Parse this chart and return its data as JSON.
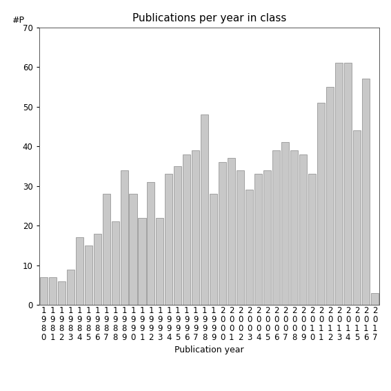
{
  "title": "Publications per year in class",
  "xlabel": "Publication year",
  "ylabel": "#P",
  "years": [
    1980,
    1981,
    1982,
    1983,
    1984,
    1985,
    1986,
    1987,
    1988,
    1989,
    1990,
    1991,
    1992,
    1993,
    1994,
    1995,
    1996,
    1997,
    1998,
    1999,
    2000,
    2001,
    2002,
    2003,
    2004,
    2005,
    2006,
    2007,
    2008,
    2009,
    2010,
    2011,
    2012,
    2013,
    2014,
    2015,
    2016,
    2017
  ],
  "values": [
    7,
    7,
    6,
    9,
    17,
    15,
    18,
    28,
    21,
    34,
    28,
    22,
    31,
    22,
    33,
    35,
    38,
    39,
    48,
    28,
    36,
    37,
    34,
    29,
    33,
    34,
    39,
    41,
    39,
    38,
    33,
    51,
    55,
    61,
    61,
    44,
    57,
    3
  ],
  "bar_color": "#c8c8c8",
  "bar_edgecolor": "#888888",
  "ylim": [
    0,
    70
  ],
  "yticks": [
    0,
    10,
    20,
    30,
    40,
    50,
    60,
    70
  ],
  "background_color": "#ffffff",
  "title_fontsize": 11,
  "axis_label_fontsize": 9,
  "tick_fontsize": 8.5
}
